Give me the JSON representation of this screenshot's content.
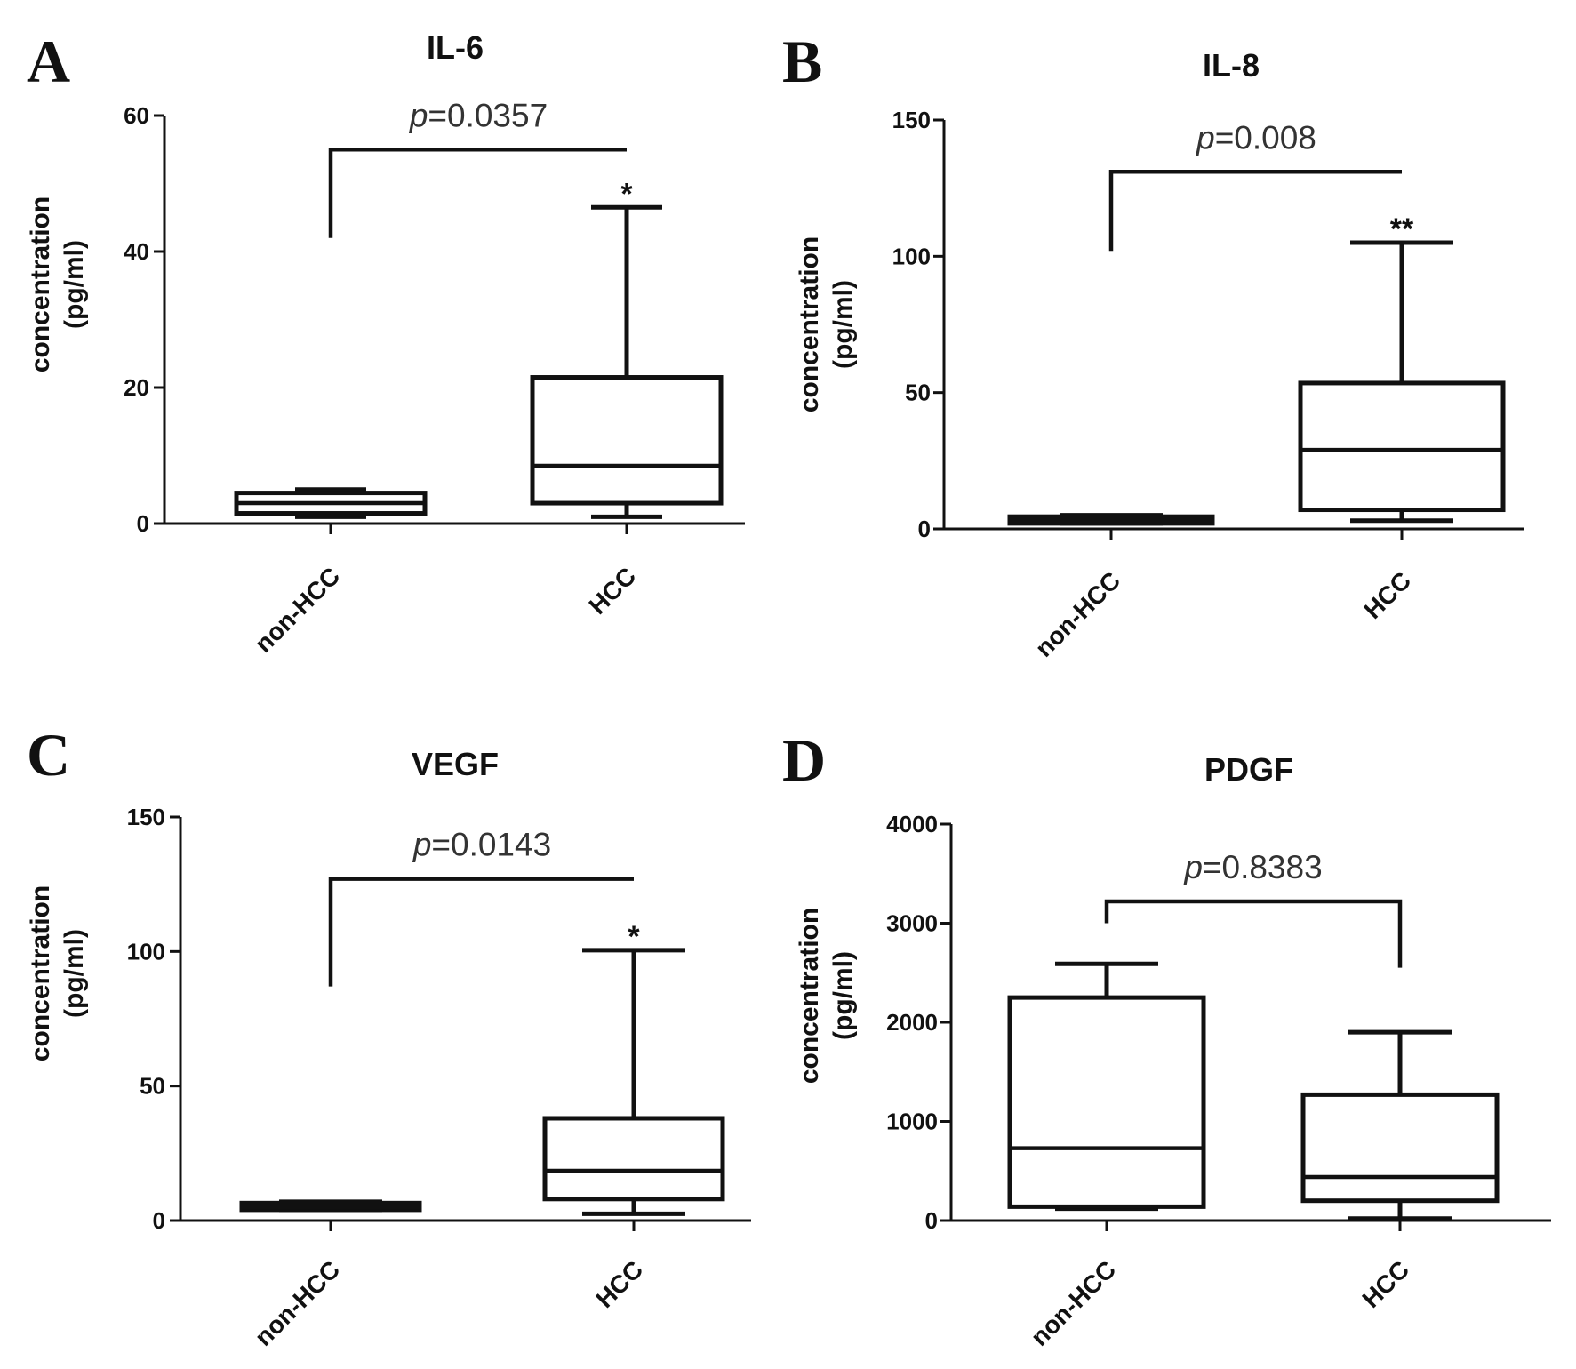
{
  "chart_data": [
    {
      "panel": "A",
      "type": "box",
      "title": "IL-6",
      "ylabel": [
        "concentration",
        "(pg/ml)"
      ],
      "ylim": [
        0,
        60
      ],
      "yticks": [
        0,
        20,
        40,
        60
      ],
      "categories": [
        "non-HCC",
        "HCC"
      ],
      "boxes": [
        {
          "name": "non-HCC",
          "min": 1.0,
          "q1": 1.5,
          "median": 3.0,
          "q3": 4.5,
          "max": 5.0
        },
        {
          "name": "HCC",
          "min": 1.0,
          "q1": 3.0,
          "median": 8.5,
          "q3": 21.5,
          "max": 46.5
        }
      ],
      "comparison": {
        "p_prefix": "p",
        "p_value": "=0.0357",
        "left_end": 42.0,
        "right_end": 55.0,
        "top": 55.0
      },
      "stars": {
        "box": 1,
        "text": "*"
      }
    },
    {
      "panel": "B",
      "type": "box",
      "title": "IL-8",
      "ylabel": [
        "concentration",
        "(pg/ml)"
      ],
      "ylim": [
        0,
        150
      ],
      "yticks": [
        0,
        50,
        100,
        150
      ],
      "categories": [
        "non-HCC",
        "HCC"
      ],
      "boxes": [
        {
          "name": "non-HCC",
          "min": 2.0,
          "q1": 2.0,
          "median": 3.5,
          "q3": 4.5,
          "max": 5.0
        },
        {
          "name": "HCC",
          "min": 3.0,
          "q1": 7.0,
          "median": 29.0,
          "q3": 53.5,
          "max": 105.0
        }
      ],
      "comparison": {
        "p_prefix": "p",
        "p_value": "=0.008",
        "left_end": 102.0,
        "right_end": 131.0,
        "top": 131.0
      },
      "stars": {
        "box": 1,
        "text": "**"
      }
    },
    {
      "panel": "C",
      "type": "box",
      "title": "VEGF",
      "ylabel": [
        "concentration",
        "(pg/ml)"
      ],
      "ylim": [
        0,
        150
      ],
      "yticks": [
        0,
        50,
        100,
        150
      ],
      "categories": [
        "non-HCC",
        "HCC"
      ],
      "boxes": [
        {
          "name": "non-HCC",
          "min": 4.0,
          "q1": 4.0,
          "median": 5.0,
          "q3": 6.5,
          "max": 7.0
        },
        {
          "name": "HCC",
          "min": 2.5,
          "q1": 8.0,
          "median": 18.5,
          "q3": 38.0,
          "max": 100.5
        }
      ],
      "comparison": {
        "p_prefix": "p",
        "p_value": "=0.0143",
        "left_end": 87.0,
        "right_end": 127.0,
        "top": 127.0
      },
      "stars": {
        "box": 1,
        "text": "*"
      }
    },
    {
      "panel": "D",
      "type": "box",
      "title": "PDGF",
      "ylabel": [
        "concentration",
        "(pg/ml)"
      ],
      "ylim": [
        0,
        4000
      ],
      "yticks": [
        0,
        1000,
        2000,
        3000,
        4000
      ],
      "categories": [
        "non-HCC",
        "HCC"
      ],
      "boxes": [
        {
          "name": "non-HCC",
          "min": 120,
          "q1": 140,
          "median": 730,
          "q3": 2250,
          "max": 2590
        },
        {
          "name": "HCC",
          "min": 20,
          "q1": 200,
          "median": 440,
          "q3": 1270,
          "max": 1900
        }
      ],
      "comparison": {
        "p_prefix": "p",
        "p_value": "=0.8383",
        "left_end": 3000,
        "right_end": 2550,
        "top": 3220
      },
      "stars": null
    }
  ]
}
